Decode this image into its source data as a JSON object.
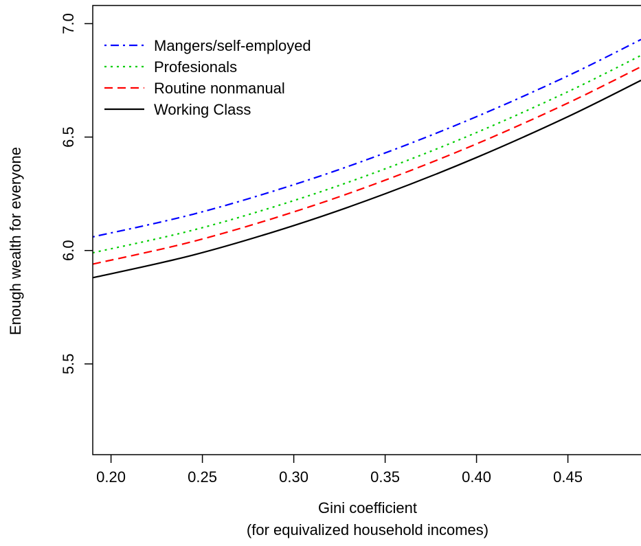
{
  "chart_data": {
    "type": "line",
    "title": "",
    "xlabel": "Gini coefficient",
    "xlabel2": "(for equivalized household incomes)",
    "ylabel": "Enough wealth for everyone",
    "xlim": [
      0.19,
      0.49
    ],
    "ylim": [
      5.1,
      7.08
    ],
    "x_ticks": [
      0.2,
      0.25,
      0.3,
      0.35,
      0.4,
      0.45
    ],
    "x_tick_labels": [
      "0.20",
      "0.25",
      "0.30",
      "0.35",
      "0.40",
      "0.45"
    ],
    "y_ticks": [
      5.5,
      6.0,
      6.5,
      7.0
    ],
    "y_tick_labels": [
      "5.5",
      "6.0",
      "6.5",
      "7.0"
    ],
    "grid": false,
    "legend_position": "top-left",
    "x": [
      0.19,
      0.245,
      0.3,
      0.35,
      0.4,
      0.45,
      0.49
    ],
    "series": [
      {
        "name": "Mangers/self-employed",
        "color": "#0000ff",
        "dash": "dotdash",
        "values": [
          6.06,
          6.16,
          6.29,
          6.43,
          6.59,
          6.77,
          6.93
        ]
      },
      {
        "name": "Profesionals",
        "color": "#00cd00",
        "dash": "dotted",
        "values": [
          5.99,
          6.09,
          6.22,
          6.36,
          6.52,
          6.7,
          6.86
        ]
      },
      {
        "name": "Routine nonmanual",
        "color": "#ff0000",
        "dash": "dashed",
        "values": [
          5.94,
          6.04,
          6.17,
          6.31,
          6.47,
          6.65,
          6.81
        ]
      },
      {
        "name": "Working Class",
        "color": "#000000",
        "dash": "solid",
        "values": [
          5.88,
          5.98,
          6.11,
          6.25,
          6.41,
          6.59,
          6.75
        ]
      }
    ]
  }
}
